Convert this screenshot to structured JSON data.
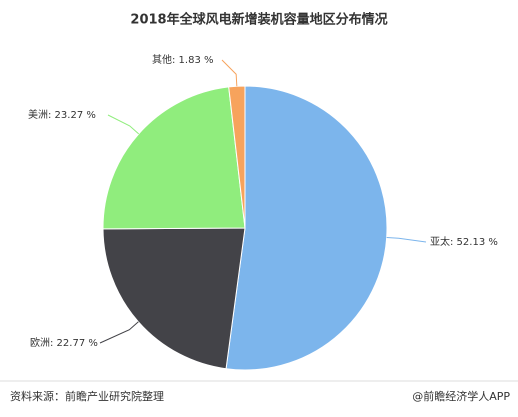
{
  "chart_data": {
    "type": "pie",
    "title": "2018年全球风电新增装机容量地区分布情况",
    "values": [
      52.13,
      22.77,
      23.27,
      1.83
    ],
    "value_labels": [
      "亚太: 52.13 %",
      "欧洲: 22.77 %",
      "美洲: 23.27 %",
      "其他: 1.83 %"
    ],
    "colors": [
      "#7cb5ec",
      "#434348",
      "#90ed7d",
      "#f7a35c"
    ]
  },
  "footer": {
    "source": "资料来源：前瞻产业研究院整理",
    "credit": "@前瞻经济学人APP"
  }
}
